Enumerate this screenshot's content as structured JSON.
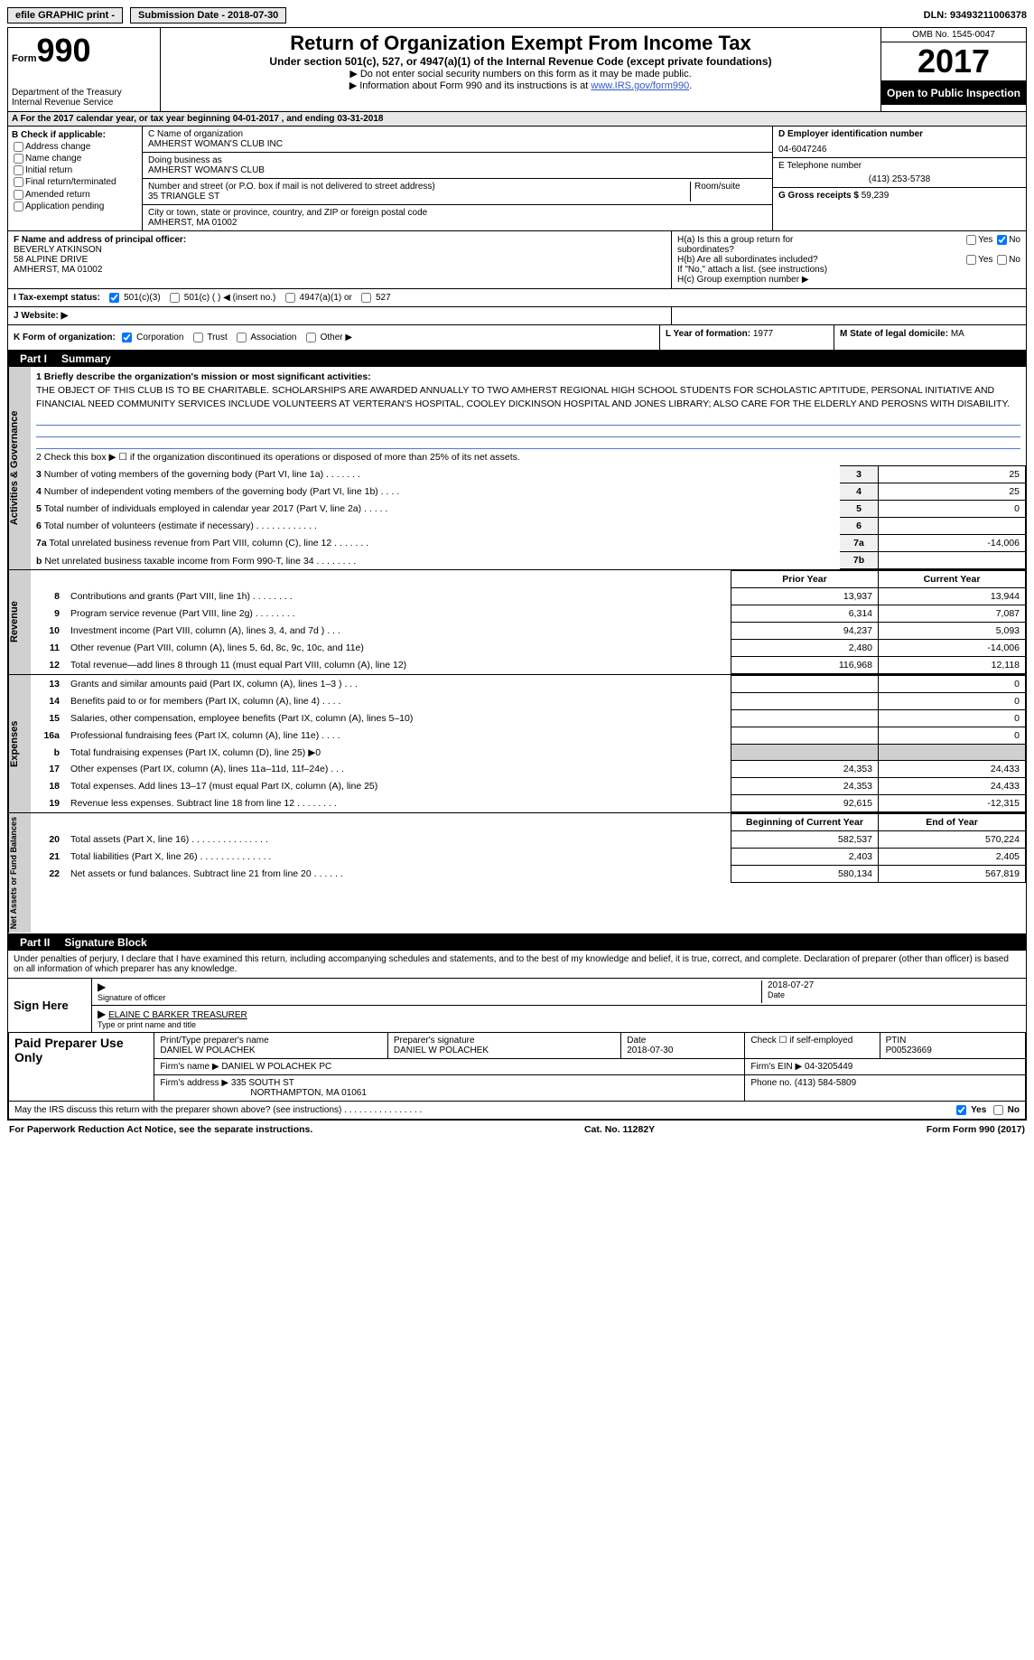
{
  "top_bar": {
    "efile": "efile GRAPHIC print -",
    "submission": "Submission Date - 2018-07-30",
    "dln": "DLN: 93493211006378"
  },
  "header": {
    "form_label": "Form",
    "form_num": "990",
    "title": "Return of Organization Exempt From Income Tax",
    "subtitle": "Under section 501(c), 527, or 4947(a)(1) of the Internal Revenue Code (except private foundations)",
    "note1": "▶ Do not enter social security numbers on this form as it may be made public.",
    "note2": "▶ Information about Form 990 and its instructions is at ",
    "link": "www.IRS.gov/form990",
    "dept1": "Department of the Treasury",
    "dept2": "Internal Revenue Service",
    "omb": "OMB No. 1545-0047",
    "year": "2017",
    "open": "Open to Public Inspection"
  },
  "row_a": "A  For the 2017 calendar year, or tax year beginning 04-01-2017   , and ending 03-31-2018",
  "col_b": {
    "header": "B Check if applicable:",
    "items": [
      "Address change",
      "Name change",
      "Initial return",
      "Final return/terminated",
      "Amended return",
      "Application pending"
    ]
  },
  "col_c": {
    "name_label": "C Name of organization",
    "name": "AMHERST WOMAN'S CLUB INC",
    "dba_label": "Doing business as",
    "dba": "AMHERST WOMAN'S CLUB",
    "addr_label": "Number and street (or P.O. box if mail is not delivered to street address)",
    "room_label": "Room/suite",
    "addr": "35 TRIANGLE ST",
    "city_label": "City or town, state or province, country, and ZIP or foreign postal code",
    "city": "AMHERST, MA  01002"
  },
  "col_d": {
    "ein_label": "D Employer identification number",
    "ein": "04-6047246",
    "phone_label": "E Telephone number",
    "phone": "(413) 253-5738",
    "gross_label": "G Gross receipts $",
    "gross": "59,239"
  },
  "row_f": {
    "label": "F Name and address of principal officer:",
    "name": "BEVERLY ATKINSON",
    "addr1": "58 ALPINE DRIVE",
    "addr2": "AMHERST, MA  01002"
  },
  "row_h": {
    "ha": "H(a)  Is this a group return for",
    "ha2": "subordinates?",
    "hb": "H(b) Are all subordinates included?",
    "hnote": "If \"No,\" attach a list. (see instructions)",
    "hc": "H(c) Group exemption number ▶",
    "yes": "Yes",
    "no": "No"
  },
  "row_i": {
    "label": "I  Tax-exempt status:",
    "o1": "501(c)(3)",
    "o2": "501(c) (   ) ◀ (insert no.)",
    "o3": "4947(a)(1) or",
    "o4": "527"
  },
  "row_j": "J  Website: ▶",
  "row_k": {
    "label": "K Form of organization:",
    "o1": "Corporation",
    "o2": "Trust",
    "o3": "Association",
    "o4": "Other ▶",
    "l_label": "L Year of formation:",
    "l_val": "1977",
    "m_label": "M State of legal domicile:",
    "m_val": "MA"
  },
  "part1": {
    "label": "Part I",
    "title": "Summary",
    "sidebar1": "Activities & Governance",
    "line1_label": "1 Briefly describe the organization's mission or most significant activities:",
    "mission": "THE OBJECT OF THIS CLUB IS TO BE CHARITABLE. SCHOLARSHIPS ARE AWARDED ANNUALLY TO TWO AMHERST REGIONAL HIGH SCHOOL STUDENTS FOR SCHOLASTIC APTITUDE, PERSONAL INITIATIVE AND FINANCIAL NEED COMMUNITY SERVICES INCLUDE VOLUNTEERS AT VERTERAN'S HOSPITAL, COOLEY DICKINSON HOSPITAL AND JONES LIBRARY; ALSO CARE FOR THE ELDERLY AND PEROSNS WITH DISABILITY.",
    "line2": "2  Check this box ▶ ☐ if the organization discontinued its operations or disposed of more than 25% of its net assets.",
    "lines_num": [
      {
        "n": "3",
        "desc": "Number of voting members of the governing body (Part VI, line 1a)   .    .    .    .    .    .    .",
        "box": "3",
        "val": "25"
      },
      {
        "n": "4",
        "desc": "Number of independent voting members of the governing body (Part VI, line 1b)   .    .    .    .",
        "box": "4",
        "val": "25"
      },
      {
        "n": "5",
        "desc": "Total number of individuals employed in calendar year 2017 (Part V, line 2a)   .    .    .    .    .",
        "box": "5",
        "val": "0"
      },
      {
        "n": "6",
        "desc": "Total number of volunteers (estimate if necessary)   .    .    .    .    .    .    .    .    .    .    .    .",
        "box": "6",
        "val": ""
      },
      {
        "n": "7a",
        "desc": "Total unrelated business revenue from Part VIII, column (C), line 12   .    .    .    .    .    .    .",
        "box": "7a",
        "val": "-14,006"
      },
      {
        "n": "b",
        "desc": "Net unrelated business taxable income from Form 990-T, line 34   .    .    .    .    .    .    .    .",
        "box": "7b",
        "val": ""
      }
    ],
    "col_prior": "Prior Year",
    "col_current": "Current Year",
    "sidebar2": "Revenue",
    "rev_lines": [
      {
        "n": "8",
        "desc": "Contributions and grants (Part VIII, line 1h)   .    .    .    .    .    .    .    .",
        "v1": "13,937",
        "v2": "13,944"
      },
      {
        "n": "9",
        "desc": "Program service revenue (Part VIII, line 2g)   .    .    .    .    .    .    .    .",
        "v1": "6,314",
        "v2": "7,087"
      },
      {
        "n": "10",
        "desc": "Investment income (Part VIII, column (A), lines 3, 4, and 7d )   .    .    .",
        "v1": "94,237",
        "v2": "5,093"
      },
      {
        "n": "11",
        "desc": "Other revenue (Part VIII, column (A), lines 5, 6d, 8c, 9c, 10c, and 11e)",
        "v1": "2,480",
        "v2": "-14,006"
      },
      {
        "n": "12",
        "desc": "Total revenue—add lines 8 through 11 (must equal Part VIII, column (A), line 12)",
        "v1": "116,968",
        "v2": "12,118"
      }
    ],
    "sidebar3": "Expenses",
    "exp_lines": [
      {
        "n": "13",
        "desc": "Grants and similar amounts paid (Part IX, column (A), lines 1–3 )   .    .    .",
        "v1": "",
        "v2": "0"
      },
      {
        "n": "14",
        "desc": "Benefits paid to or for members (Part IX, column (A), line 4)   .    .    .    .",
        "v1": "",
        "v2": "0"
      },
      {
        "n": "15",
        "desc": "Salaries, other compensation, employee benefits (Part IX, column (A), lines 5–10)",
        "v1": "",
        "v2": "0"
      },
      {
        "n": "16a",
        "desc": "Professional fundraising fees (Part IX, column (A), line 11e)   .    .    .    .",
        "v1": "",
        "v2": "0"
      },
      {
        "n": "b",
        "desc": "Total fundraising expenses (Part IX, column (D), line 25) ▶0",
        "v1": "gray",
        "v2": "gray"
      },
      {
        "n": "17",
        "desc": "Other expenses (Part IX, column (A), lines 11a–11d, 11f–24e)   .    .    .",
        "v1": "24,353",
        "v2": "24,433"
      },
      {
        "n": "18",
        "desc": "Total expenses. Add lines 13–17 (must equal Part IX, column (A), line 25)",
        "v1": "24,353",
        "v2": "24,433"
      },
      {
        "n": "19",
        "desc": "Revenue less expenses. Subtract line 18 from line 12 .    .    .    .    .    .    .    .",
        "v1": "92,615",
        "v2": "-12,315"
      }
    ],
    "sidebar4": "Net Assets or Fund Balances",
    "col_begin": "Beginning of Current Year",
    "col_end": "End of Year",
    "net_lines": [
      {
        "n": "20",
        "desc": "Total assets (Part X, line 16)   .    .    .    .    .    .    .    .    .    .    .    .    .    .    .",
        "v1": "582,537",
        "v2": "570,224"
      },
      {
        "n": "21",
        "desc": "Total liabilities (Part X, line 26)   .    .    .    .    .    .    .    .    .    .    .    .    .    .",
        "v1": "2,403",
        "v2": "2,405"
      },
      {
        "n": "22",
        "desc": "Net assets or fund balances. Subtract line 21 from line 20   .    .    .    .    .    .",
        "v1": "580,134",
        "v2": "567,819"
      }
    ]
  },
  "part2": {
    "label": "Part II",
    "title": "Signature Block",
    "declaration": "Under penalties of perjury, I declare that I have examined this return, including accompanying schedules and statements, and to the best of my knowledge and belief, it is true, correct, and complete. Declaration of preparer (other than officer) is based on all information of which preparer has any knowledge.",
    "sign_here": "Sign Here",
    "sig_officer": "Signature of officer",
    "date_label": "Date",
    "date_val": "2018-07-27",
    "name_title_label": "Type or print name and title",
    "name_title": "ELAINE C BARKER  TREASURER",
    "paid_label": "Paid Preparer Use Only",
    "prep_name_label": "Print/Type preparer's name",
    "prep_name": "DANIEL W POLACHEK",
    "prep_sig_label": "Preparer's signature",
    "prep_sig": "DANIEL W POLACHEK",
    "prep_date_label": "Date",
    "prep_date": "2018-07-30",
    "self_emp": "Check ☐ if self-employed",
    "ptin_label": "PTIN",
    "ptin": "P00523669",
    "firm_name_label": "Firm's name     ▶",
    "firm_name": "DANIEL W POLACHEK PC",
    "firm_ein_label": "Firm's EIN ▶",
    "firm_ein": "04-3205449",
    "firm_addr_label": "Firm's address ▶",
    "firm_addr1": "335 SOUTH ST",
    "firm_addr2": "NORTHAMPTON, MA  01061",
    "firm_phone_label": "Phone no.",
    "firm_phone": "(413) 584-5809",
    "discuss": "May the IRS discuss this return with the preparer shown above? (see instructions)   .    .    .    .    .    .    .    .    .    .    .    .    .    .    .    .",
    "yes": "Yes",
    "no": "No"
  },
  "footer": {
    "paperwork": "For Paperwork Reduction Act Notice, see the separate instructions.",
    "cat": "Cat. No. 11282Y",
    "form": "Form 990 (2017)"
  }
}
